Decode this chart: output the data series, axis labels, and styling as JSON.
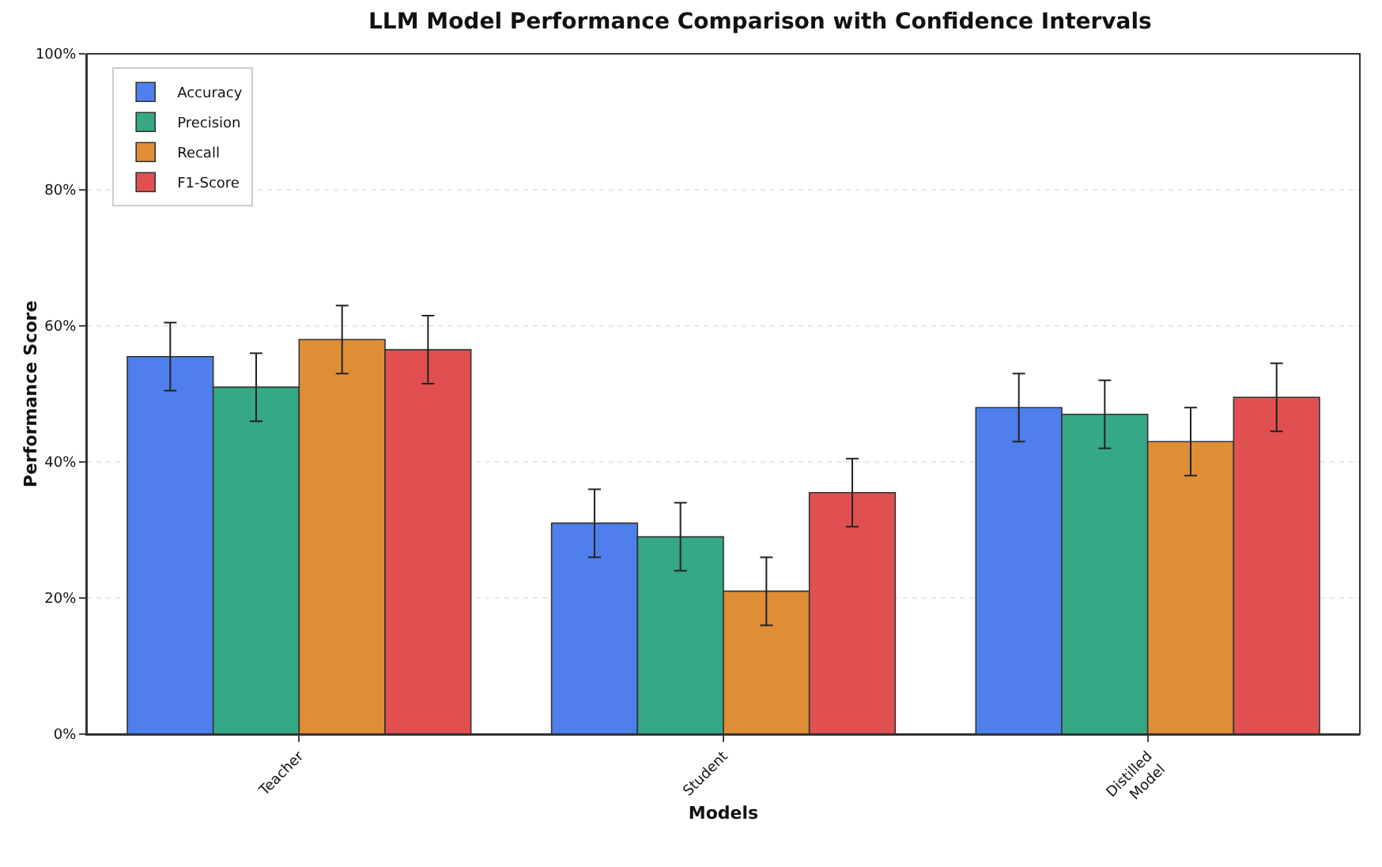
{
  "chart_data": {
    "type": "bar",
    "title": "LLM Model Performance Comparison with Confidence Intervals",
    "xlabel": "Models",
    "ylabel": "Performance Score",
    "categories": [
      "Teacher",
      "Student",
      "Distilled\nModel"
    ],
    "series": [
      {
        "name": "Accuracy",
        "color": "#4f7fec",
        "values": [
          55.5,
          31,
          48
        ],
        "errors": [
          5,
          5,
          5
        ]
      },
      {
        "name": "Precision",
        "color": "#35a886",
        "values": [
          51,
          29,
          47
        ],
        "errors": [
          5,
          5,
          5
        ]
      },
      {
        "name": "Recall",
        "color": "#df8e36",
        "values": [
          58,
          21,
          43
        ],
        "errors": [
          5,
          5,
          5
        ]
      },
      {
        "name": "F1-Score",
        "color": "#e05050",
        "values": [
          56.5,
          35.5,
          49.5
        ],
        "errors": [
          5,
          5,
          5
        ]
      }
    ],
    "ylim": [
      0,
      100
    ],
    "yticks": [
      {
        "value": 0,
        "label": "0%"
      },
      {
        "value": 20,
        "label": "20%"
      },
      {
        "value": 40,
        "label": "40%"
      },
      {
        "value": 60,
        "label": "60%"
      },
      {
        "value": 80,
        "label": "80%"
      },
      {
        "value": 100,
        "label": "100%"
      }
    ],
    "grid": "y",
    "legend": "top left"
  }
}
